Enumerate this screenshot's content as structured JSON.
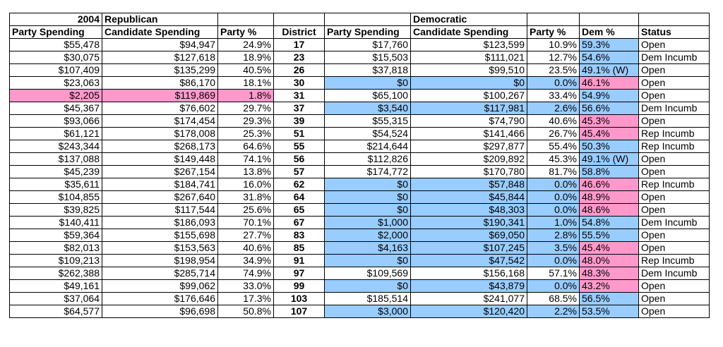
{
  "header": {
    "year": "2004",
    "rep_party": "Republican",
    "dem_party": "Democratic",
    "columns": [
      "Party Spending",
      "Candidate Spending",
      "Party %",
      "District",
      "Party Spending",
      "Candidate Spending",
      "Party %",
      "Dem %",
      "Status"
    ]
  },
  "colors": {
    "blue": "#99ccff",
    "pink": "#ff99cc"
  },
  "rows": [
    {
      "r_party": "$55,478",
      "r_cand": "$94,947",
      "r_pct": "24.9%",
      "district": "17",
      "d_party": "$17,760",
      "d_cand": "$123,599",
      "d_pct": "10.9%",
      "dem_pct": "59.3%",
      "status": "Open",
      "hl_rep": "",
      "hl_dem": "",
      "hl_dempct": "blue"
    },
    {
      "r_party": "$30,075",
      "r_cand": "$127,618",
      "r_pct": "18.9%",
      "district": "23",
      "d_party": "$15,503",
      "d_cand": "$111,021",
      "d_pct": "12.7%",
      "dem_pct": "54.6%",
      "status": "Dem Incumb",
      "hl_rep": "",
      "hl_dem": "",
      "hl_dempct": "blue"
    },
    {
      "r_party": "$107,409",
      "r_cand": "$135,299",
      "r_pct": "40.5%",
      "district": "26",
      "d_party": "$37,818",
      "d_cand": "$99,510",
      "d_pct": "23.5%",
      "dem_pct": "49.1% (W)",
      "status": "Open",
      "hl_rep": "",
      "hl_dem": "",
      "hl_dempct": "blue"
    },
    {
      "r_party": "$23,063",
      "r_cand": "$86,170",
      "r_pct": "18.1%",
      "district": "30",
      "d_party": "$0",
      "d_cand": "$0",
      "d_pct": "0.0%",
      "dem_pct": "46.1%",
      "status": "Open",
      "hl_rep": "",
      "hl_dem": "blue",
      "hl_dempct": "pink"
    },
    {
      "r_party": "$2,205",
      "r_cand": "$119,869",
      "r_pct": "1.8%",
      "district": "31",
      "d_party": "$65,100",
      "d_cand": "$100,267",
      "d_pct": "33.4%",
      "dem_pct": "54.9%",
      "status": "Open",
      "hl_rep": "pink",
      "hl_dem": "",
      "hl_dempct": "blue"
    },
    {
      "r_party": "$45,367",
      "r_cand": "$76,602",
      "r_pct": "29.7%",
      "district": "37",
      "d_party": "$3,540",
      "d_cand": "$117,981",
      "d_pct": "2.6%",
      "dem_pct": "56.6%",
      "status": "Dem Incumb",
      "hl_rep": "",
      "hl_dem": "blue",
      "hl_dempct": "blue"
    },
    {
      "r_party": "$93,066",
      "r_cand": "$174,454",
      "r_pct": "29.3%",
      "district": "39",
      "d_party": "$55,315",
      "d_cand": "$74,790",
      "d_pct": "40.6%",
      "dem_pct": "45.3%",
      "status": "Open",
      "hl_rep": "",
      "hl_dem": "",
      "hl_dempct": "pink"
    },
    {
      "r_party": "$61,121",
      "r_cand": "$178,008",
      "r_pct": "25.3%",
      "district": "51",
      "d_party": "$54,524",
      "d_cand": "$141,466",
      "d_pct": "26.7%",
      "dem_pct": "45.4%",
      "status": "Rep Incumb",
      "hl_rep": "",
      "hl_dem": "",
      "hl_dempct": "pink"
    },
    {
      "r_party": "$243,344",
      "r_cand": "$268,173",
      "r_pct": "64.6%",
      "district": "55",
      "d_party": "$214,644",
      "d_cand": "$297,877",
      "d_pct": "55.4%",
      "dem_pct": "50.3%",
      "status": "Rep Incumb",
      "hl_rep": "",
      "hl_dem": "",
      "hl_dempct": "blue"
    },
    {
      "r_party": "$137,088",
      "r_cand": "$149,448",
      "r_pct": "74.1%",
      "district": "56",
      "d_party": "$112,826",
      "d_cand": "$209,892",
      "d_pct": "45.3%",
      "dem_pct": "49.1% (W)",
      "status": "Open",
      "hl_rep": "",
      "hl_dem": "",
      "hl_dempct": "blue"
    },
    {
      "r_party": "$45,239",
      "r_cand": "$267,154",
      "r_pct": "13.8%",
      "district": "57",
      "d_party": "$174,772",
      "d_cand": "$170,780",
      "d_pct": "81.7%",
      "dem_pct": "58.8%",
      "status": "Open",
      "hl_rep": "",
      "hl_dem": "",
      "hl_dempct": "blue"
    },
    {
      "r_party": "$35,611",
      "r_cand": "$184,741",
      "r_pct": "16.0%",
      "district": "62",
      "d_party": "$0",
      "d_cand": "$57,848",
      "d_pct": "0.0%",
      "dem_pct": "46.6%",
      "status": "Rep Incumb",
      "hl_rep": "",
      "hl_dem": "blue",
      "hl_dempct": "pink"
    },
    {
      "r_party": "$104,855",
      "r_cand": "$267,640",
      "r_pct": "31.8%",
      "district": "64",
      "d_party": "$0",
      "d_cand": "$45,844",
      "d_pct": "0.0%",
      "dem_pct": "48.9%",
      "status": "Open",
      "hl_rep": "",
      "hl_dem": "blue",
      "hl_dempct": "pink"
    },
    {
      "r_party": "$39,825",
      "r_cand": "$117,544",
      "r_pct": "25.6%",
      "district": "65",
      "d_party": "$0",
      "d_cand": "$48,303",
      "d_pct": "0.0%",
      "dem_pct": "48.6%",
      "status": "Open",
      "hl_rep": "",
      "hl_dem": "blue",
      "hl_dempct": "pink"
    },
    {
      "r_party": "$140,411",
      "r_cand": "$186,093",
      "r_pct": "70.1%",
      "district": "67",
      "d_party": "$1,000",
      "d_cand": "$190,341",
      "d_pct": "1.0%",
      "dem_pct": "54.8%",
      "status": "Dem Incumb",
      "hl_rep": "",
      "hl_dem": "blue",
      "hl_dempct": "blue"
    },
    {
      "r_party": "$59,364",
      "r_cand": "$155,698",
      "r_pct": "27.7%",
      "district": "83",
      "d_party": "$2,000",
      "d_cand": "$69,050",
      "d_pct": "2.8%",
      "dem_pct": "55.5%",
      "status": "Open",
      "hl_rep": "",
      "hl_dem": "blue",
      "hl_dempct": "blue"
    },
    {
      "r_party": "$82,013",
      "r_cand": "$153,563",
      "r_pct": "40.6%",
      "district": "85",
      "d_party": "$4,163",
      "d_cand": "$107,245",
      "d_pct": "3.5%",
      "dem_pct": "45.4%",
      "status": "Open",
      "hl_rep": "",
      "hl_dem": "blue",
      "hl_dempct": "pink"
    },
    {
      "r_party": "$109,213",
      "r_cand": "$198,954",
      "r_pct": "34.9%",
      "district": "91",
      "d_party": "$0",
      "d_cand": "$47,542",
      "d_pct": "0.0%",
      "dem_pct": "48.0%",
      "status": "Rep Incumb",
      "hl_rep": "",
      "hl_dem": "blue",
      "hl_dempct": "pink"
    },
    {
      "r_party": "$262,388",
      "r_cand": "$285,714",
      "r_pct": "74.9%",
      "district": "97",
      "d_party": "$109,569",
      "d_cand": "$156,168",
      "d_pct": "57.1%",
      "dem_pct": "48.3%",
      "status": "Dem Incumb",
      "hl_rep": "",
      "hl_dem": "",
      "hl_dempct": "pink"
    },
    {
      "r_party": "$49,161",
      "r_cand": "$99,062",
      "r_pct": "33.0%",
      "district": "99",
      "d_party": "$0",
      "d_cand": "$43,879",
      "d_pct": "0.0%",
      "dem_pct": "43.2%",
      "status": "Open",
      "hl_rep": "",
      "hl_dem": "blue",
      "hl_dempct": "pink"
    },
    {
      "r_party": "$37,064",
      "r_cand": "$176,646",
      "r_pct": "17.3%",
      "district": "103",
      "d_party": "$185,514",
      "d_cand": "$241,077",
      "d_pct": "68.5%",
      "dem_pct": "56.5%",
      "status": "Open",
      "hl_rep": "",
      "hl_dem": "",
      "hl_dempct": "blue"
    },
    {
      "r_party": "$64,577",
      "r_cand": "$96,698",
      "r_pct": "50.8%",
      "district": "107",
      "d_party": "$3,000",
      "d_cand": "$120,420",
      "d_pct": "2.2%",
      "dem_pct": "53.5%",
      "status": "Open",
      "hl_rep": "",
      "hl_dem": "blue",
      "hl_dempct": "blue"
    }
  ]
}
